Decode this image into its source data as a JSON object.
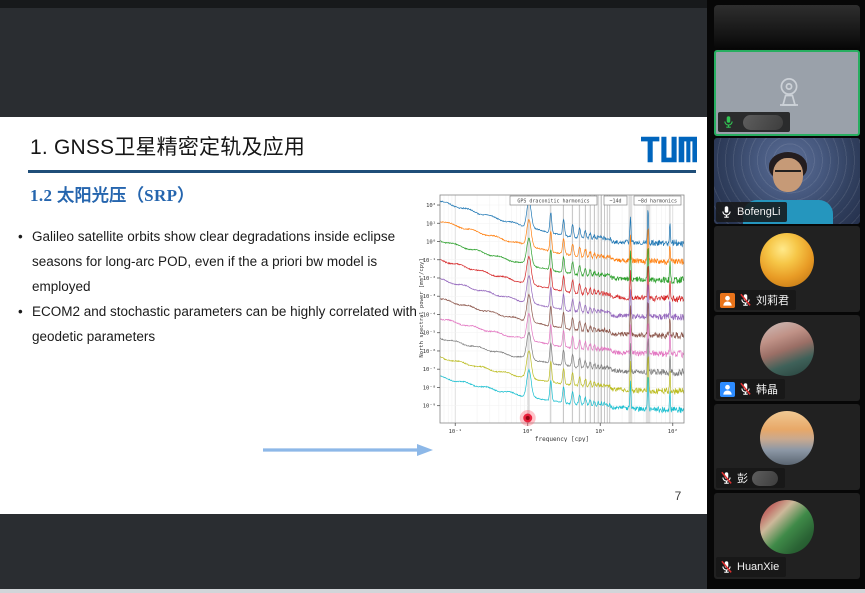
{
  "colors": {
    "tum_blue": "#0065BD",
    "title_underline": "#1f4e79",
    "subtitle_blue": "#2565ae",
    "arrow_blue": "#8db8e8",
    "active_speaker_green": "#27ae60",
    "mic_on_green": "#31c553",
    "badge_orange": "#e8731a",
    "badge_blue": "#2d8cff",
    "laser_red": "#e8112d"
  },
  "slide": {
    "title": "1. GNSS卫星精密定轨及应用",
    "subtitle": "1.2 太阳光压（SRP）",
    "bullet_glyph": "•",
    "bullets": [
      "Galileo satellite orbits show clear degradations inside eclipse seasons for long-arc POD, even if the a priori bw model is employed",
      "ECOM2 and stochastic parameters can be highly correlated with geodetic parameters"
    ],
    "page_number": "7",
    "logo_name": "TUM"
  },
  "chart_data": {
    "type": "line",
    "title": "",
    "xlabel": "frequency [cpy]",
    "ylabel": "North spectral power [mm²/cpy]",
    "x_scale": "log",
    "y_scale": "log",
    "xlim": [
      0.062,
      143
    ],
    "ylim_exponents": [
      -9,
      2
    ],
    "x_ticks": [
      {
        "label": "10⁻¹",
        "exp": -1
      },
      {
        "label": "10⁰",
        "exp": 0
      },
      {
        "label": "10¹",
        "exp": 1
      },
      {
        "label": "10²",
        "exp": 2
      }
    ],
    "y_ticks": [
      {
        "label": "10²",
        "exp": 2
      },
      {
        "label": "10¹",
        "exp": 1
      },
      {
        "label": "10⁰",
        "exp": 0
      },
      {
        "label": "10⁻¹",
        "exp": -1
      },
      {
        "label": "10⁻²",
        "exp": -2
      },
      {
        "label": "10⁻³",
        "exp": -3
      },
      {
        "label": "10⁻⁴",
        "exp": -4
      },
      {
        "label": "10⁻⁵",
        "exp": -5
      },
      {
        "label": "10⁻⁶",
        "exp": -6
      },
      {
        "label": "10⁻⁷",
        "exp": -7
      },
      {
        "label": "10⁻⁸",
        "exp": -8
      },
      {
        "label": "10⁻⁹",
        "exp": -9
      }
    ],
    "legend": [
      "GPS draconitic harmonics",
      "~14d",
      "~8d harmonics"
    ],
    "grid": {
      "draconitic_base_cpy": 1.04,
      "harmonics_count": 13,
      "band_14d_cpy": 26.07,
      "band_8d_cpy": 45.64,
      "band_4d_cpy": 91.3
    },
    "series": [
      {
        "name": "series-1",
        "color": "#1f77b4"
      },
      {
        "name": "series-2",
        "color": "#ff7f0e"
      },
      {
        "name": "series-3",
        "color": "#2ca02c"
      },
      {
        "name": "series-4",
        "color": "#d62728"
      },
      {
        "name": "series-5",
        "color": "#9467bd"
      },
      {
        "name": "series-6",
        "color": "#8c564b"
      },
      {
        "name": "series-7",
        "color": "#e377c2"
      },
      {
        "name": "series-8",
        "color": "#7f7f7f"
      },
      {
        "name": "series-9",
        "color": "#bcbd22"
      },
      {
        "name": "series-10",
        "color": "#17becf"
      }
    ],
    "annotation_laser_pointer": {
      "x_cpy": 1.0,
      "color": "#e8112d"
    }
  },
  "participants": [
    {
      "name": "",
      "name_redacted": true,
      "mic": "on",
      "video": "off",
      "active_speaker": true
    },
    {
      "name": "BofengLi",
      "mic": "on",
      "video": "on"
    },
    {
      "name": "刘莉君",
      "mic": "muted",
      "badge": "person-orange",
      "video": "avatar"
    },
    {
      "name": "韩晶",
      "mic": "muted",
      "badge": "person-blue",
      "video": "avatar"
    },
    {
      "name": "彭",
      "name_redacted": true,
      "mic": "muted",
      "video": "avatar"
    },
    {
      "name": "HuanXie",
      "mic": "muted",
      "video": "avatar"
    }
  ]
}
